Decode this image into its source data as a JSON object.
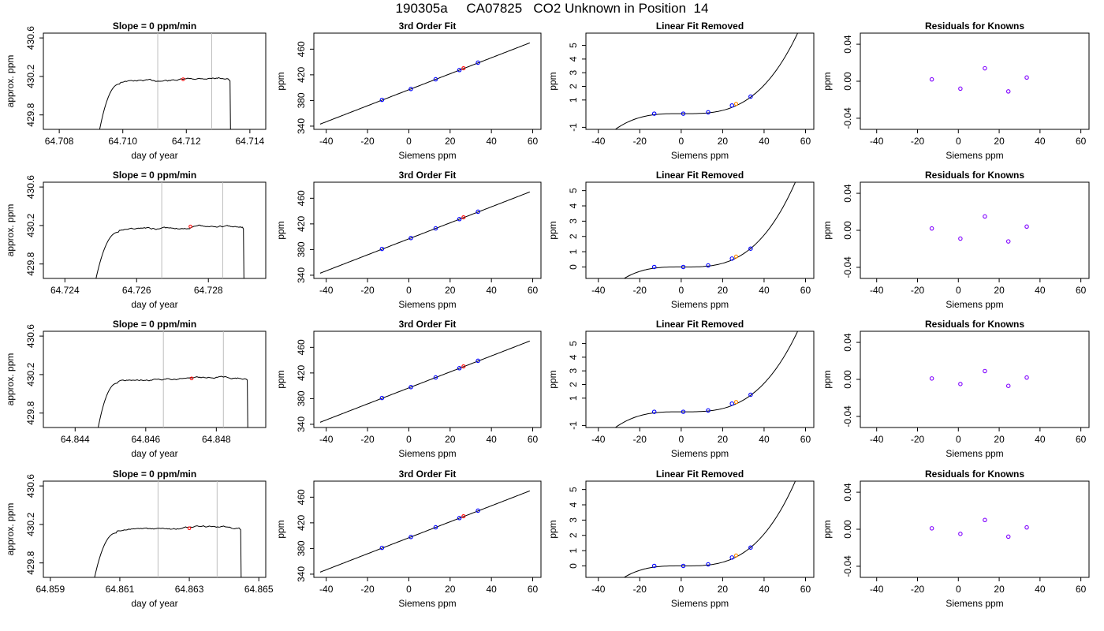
{
  "title": "190305a     CA07825   CO2 Unknown in Position  14",
  "colors": {
    "series_line": "#000000",
    "known_point": "#0000ff",
    "residual_point": "#7f00ff",
    "unknown_point": "#ff0000",
    "fit_point": "#ff8c00",
    "window_line": "#bebebe"
  },
  "chart_data": [
    {
      "type": "line",
      "title": "Slope =  0  ppm/min",
      "xlabel": "day of year",
      "ylabel": "approx. ppm",
      "xlim": [
        64.7075,
        64.7145
      ],
      "ylim": [
        429.65,
        430.65
      ],
      "xticks": [
        "64.708",
        "64.710",
        "64.712",
        "64.714"
      ],
      "yticks": [
        "429.8",
        "430.2",
        "430.6"
      ],
      "window": [
        64.7111,
        64.7128
      ],
      "marker": [
        64.7119,
        430.17
      ],
      "trace": {
        "x_start": 64.7091,
        "x_end": 64.7134,
        "rise_end": 64.7099,
        "plateau": 430.17
      }
    },
    {
      "type": "scatter",
      "title": "3rd Order Fit",
      "xlabel": "Siemens ppm",
      "ylabel": "ppm",
      "xlim": [
        -46,
        64
      ],
      "ylim": [
        335,
        485
      ],
      "xticks": [
        "-40",
        "-20",
        "0",
        "20",
        "40",
        "60"
      ],
      "yticks": [
        "340",
        "380",
        "420",
        "460"
      ],
      "curve_x": [
        -43,
        59
      ],
      "knowns": {
        "x": [
          -13,
          1,
          13,
          24.5,
          33.5
        ],
        "y": [
          381,
          398,
          413,
          427.5,
          439
        ]
      },
      "unknown": {
        "x": [
          26.5
        ],
        "y": [
          430.2
        ]
      }
    },
    {
      "type": "scatter",
      "title": "Linear Fit Removed",
      "xlabel": "Siemens ppm",
      "ylabel": "ppm",
      "xlim": [
        -46,
        64
      ],
      "ylim": [
        -1.15,
        5.9
      ],
      "xticks": [
        "-40",
        "-20",
        "0",
        "20",
        "40",
        "60"
      ],
      "yticks": [
        "-1",
        "1",
        "2",
        "3",
        "4",
        "5"
      ],
      "curve_x": [
        -43,
        59
      ],
      "knowns": {
        "x": [
          -13,
          1,
          13,
          24.5,
          33.5
        ],
        "y": [
          0,
          0,
          0.1,
          0.6,
          1.25
        ]
      },
      "unknown": {
        "x": [
          26.5
        ],
        "y": [
          0.72
        ]
      }
    },
    {
      "type": "scatter",
      "title": "Residuals for Knowns",
      "xlabel": "Siemens ppm",
      "ylabel": "ppm",
      "xlim": [
        -48,
        64
      ],
      "ylim": [
        -0.052,
        0.052
      ],
      "xticks": [
        "-40",
        "-20",
        "0",
        "20",
        "40",
        "60"
      ],
      "yticks": [
        "-0.04",
        "0.00",
        "0.04"
      ],
      "knowns": {
        "x": [
          -13,
          1,
          13,
          24.5,
          33.5
        ],
        "y": [
          0.002,
          -0.008,
          0.014,
          -0.011,
          0.004
        ]
      }
    },
    {
      "type": "line",
      "title": "Slope =  0  ppm/min",
      "xlabel": "day of year",
      "ylabel": "approx. ppm",
      "xlim": [
        64.7234,
        64.7296
      ],
      "ylim": [
        429.65,
        430.65
      ],
      "xticks": [
        "64.724",
        "64.726",
        "64.728"
      ],
      "yticks": [
        "429.8",
        "430.2",
        "430.6"
      ],
      "window": [
        64.7267,
        64.7284
      ],
      "marker": [
        64.7275,
        430.19
      ],
      "trace": {
        "x_start": 64.7247,
        "x_end": 64.729,
        "rise_end": 64.7255,
        "plateau": 430.18
      }
    },
    {
      "type": "scatter",
      "title": "3rd Order Fit",
      "xlabel": "Siemens ppm",
      "ylabel": "ppm",
      "xlim": [
        -46,
        64
      ],
      "ylim": [
        335,
        485
      ],
      "xticks": [
        "-40",
        "-20",
        "0",
        "20",
        "40",
        "60"
      ],
      "yticks": [
        "340",
        "380",
        "420",
        "460"
      ],
      "curve_x": [
        -43,
        59
      ],
      "knowns": {
        "x": [
          -13,
          1,
          13,
          24.5,
          33.5
        ],
        "y": [
          381,
          398,
          413,
          427.5,
          439
        ]
      },
      "unknown": {
        "x": [
          26.5
        ],
        "y": [
          430.2
        ]
      }
    },
    {
      "type": "scatter",
      "title": "Linear Fit Removed",
      "xlabel": "Siemens ppm",
      "ylabel": "ppm",
      "xlim": [
        -46,
        64
      ],
      "ylim": [
        -0.75,
        5.55
      ],
      "xticks": [
        "-40",
        "-20",
        "0",
        "20",
        "40",
        "60"
      ],
      "yticks": [
        "0",
        "1",
        "2",
        "3",
        "4",
        "5"
      ],
      "curve_x": [
        -43,
        59
      ],
      "knowns": {
        "x": [
          -13,
          1,
          13,
          24.5,
          33.5
        ],
        "y": [
          0,
          0,
          0.1,
          0.55,
          1.2
        ]
      },
      "unknown": {
        "x": [
          26.5
        ],
        "y": [
          0.68
        ]
      }
    },
    {
      "type": "scatter",
      "title": "Residuals for Knowns",
      "xlabel": "Siemens ppm",
      "ylabel": "ppm",
      "xlim": [
        -48,
        64
      ],
      "ylim": [
        -0.052,
        0.052
      ],
      "xticks": [
        "-40",
        "-20",
        "0",
        "20",
        "40",
        "60"
      ],
      "yticks": [
        "-0.04",
        "0.00",
        "0.04"
      ],
      "knowns": {
        "x": [
          -13,
          1,
          13,
          24.5,
          33.5
        ],
        "y": [
          0.002,
          -0.009,
          0.015,
          -0.012,
          0.004
        ]
      }
    },
    {
      "type": "line",
      "title": "Slope =  0  ppm/min",
      "xlabel": "day of year",
      "ylabel": "approx. ppm",
      "xlim": [
        64.8431,
        64.8494
      ],
      "ylim": [
        429.65,
        430.65
      ],
      "xticks": [
        "64.844",
        "64.846",
        "64.848"
      ],
      "yticks": [
        "429.8",
        "430.2",
        "430.6"
      ],
      "window": [
        64.8465,
        64.8482
      ],
      "marker": [
        64.8473,
        430.16
      ],
      "trace": {
        "x_start": 64.8445,
        "x_end": 64.8489,
        "rise_end": 64.8452,
        "plateau": 430.16
      }
    },
    {
      "type": "scatter",
      "title": "3rd Order Fit",
      "xlabel": "Siemens ppm",
      "ylabel": "ppm",
      "xlim": [
        -46,
        64
      ],
      "ylim": [
        335,
        485
      ],
      "xticks": [
        "-40",
        "-20",
        "0",
        "20",
        "40",
        "60"
      ],
      "yticks": [
        "340",
        "380",
        "420",
        "460"
      ],
      "curve_x": [
        -43,
        59
      ],
      "knowns": {
        "x": [
          -13,
          1,
          13,
          24.5,
          33.5
        ],
        "y": [
          381,
          398,
          413,
          427.5,
          439
        ]
      },
      "unknown": {
        "x": [
          26.5
        ],
        "y": [
          430.2
        ]
      }
    },
    {
      "type": "scatter",
      "title": "Linear Fit Removed",
      "xlabel": "Siemens ppm",
      "ylabel": "ppm",
      "xlim": [
        -46,
        64
      ],
      "ylim": [
        -1.15,
        5.9
      ],
      "xticks": [
        "-40",
        "-20",
        "0",
        "20",
        "40",
        "60"
      ],
      "yticks": [
        "-1",
        "1",
        "2",
        "3",
        "4",
        "5"
      ],
      "curve_x": [
        -43,
        59
      ],
      "knowns": {
        "x": [
          -13,
          1,
          13,
          24.5,
          33.5
        ],
        "y": [
          0,
          0,
          0.1,
          0.6,
          1.25
        ]
      },
      "unknown": {
        "x": [
          26.5
        ],
        "y": [
          0.72
        ]
      }
    },
    {
      "type": "scatter",
      "title": "Residuals for Knowns",
      "xlabel": "Siemens ppm",
      "ylabel": "ppm",
      "xlim": [
        -48,
        64
      ],
      "ylim": [
        -0.052,
        0.052
      ],
      "xticks": [
        "-40",
        "-20",
        "0",
        "20",
        "40",
        "60"
      ],
      "yticks": [
        "-0.04",
        "0.00",
        "0.04"
      ],
      "knowns": {
        "x": [
          -13,
          1,
          13,
          24.5,
          33.5
        ],
        "y": [
          0.001,
          -0.005,
          0.009,
          -0.007,
          0.002
        ]
      }
    },
    {
      "type": "line",
      "title": "Slope =  0  ppm/min",
      "xlabel": "day of year",
      "ylabel": "approx. ppm",
      "xlim": [
        64.8588,
        64.8652
      ],
      "ylim": [
        429.65,
        430.65
      ],
      "xticks": [
        "64.859",
        "64.861",
        "64.863",
        "64.865"
      ],
      "yticks": [
        "429.8",
        "430.2",
        "430.6"
      ],
      "window": [
        64.8621,
        64.8638
      ],
      "marker": [
        64.863,
        430.16
      ],
      "trace": {
        "x_start": 64.8601,
        "x_end": 64.8645,
        "rise_end": 64.8609,
        "plateau": 430.16
      }
    },
    {
      "type": "scatter",
      "title": "3rd Order Fit",
      "xlabel": "Siemens ppm",
      "ylabel": "ppm",
      "xlim": [
        -46,
        64
      ],
      "ylim": [
        335,
        485
      ],
      "xticks": [
        "-40",
        "-20",
        "0",
        "20",
        "40",
        "60"
      ],
      "yticks": [
        "340",
        "380",
        "420",
        "460"
      ],
      "curve_x": [
        -43,
        59
      ],
      "knowns": {
        "x": [
          -13,
          1,
          13,
          24.5,
          33.5
        ],
        "y": [
          381,
          398,
          413,
          427.5,
          439
        ]
      },
      "unknown": {
        "x": [
          26.5
        ],
        "y": [
          430.2
        ]
      }
    },
    {
      "type": "scatter",
      "title": "Linear Fit Removed",
      "xlabel": "Siemens ppm",
      "ylabel": "ppm",
      "xlim": [
        -46,
        64
      ],
      "ylim": [
        -0.75,
        5.55
      ],
      "xticks": [
        "-40",
        "-20",
        "0",
        "20",
        "40",
        "60"
      ],
      "yticks": [
        "0",
        "1",
        "2",
        "3",
        "4",
        "5"
      ],
      "curve_x": [
        -43,
        59
      ],
      "knowns": {
        "x": [
          -13,
          1,
          13,
          24.5,
          33.5
        ],
        "y": [
          0,
          0,
          0.1,
          0.55,
          1.2
        ]
      },
      "unknown": {
        "x": [
          26.5
        ],
        "y": [
          0.68
        ]
      }
    },
    {
      "type": "scatter",
      "title": "Residuals for Knowns",
      "xlabel": "Siemens ppm",
      "ylabel": "ppm",
      "xlim": [
        -48,
        64
      ],
      "ylim": [
        -0.052,
        0.052
      ],
      "xticks": [
        "-40",
        "-20",
        "0",
        "20",
        "40",
        "60"
      ],
      "yticks": [
        "-0.04",
        "0.00",
        "0.04"
      ],
      "knowns": {
        "x": [
          -13,
          1,
          13,
          24.5,
          33.5
        ],
        "y": [
          0.001,
          -0.005,
          0.01,
          -0.008,
          0.002
        ]
      }
    }
  ]
}
